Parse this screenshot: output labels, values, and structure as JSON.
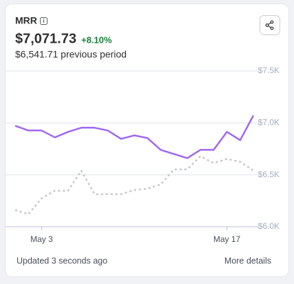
{
  "header": {
    "title": "MRR",
    "value": "$7,071.73",
    "change": "+8.10%",
    "previous": "$6,541.71 previous period"
  },
  "chart_data": {
    "type": "line",
    "categories": [
      null,
      null,
      "May 3",
      null,
      null,
      null,
      null,
      null,
      null,
      null,
      null,
      null,
      null,
      null,
      null,
      null,
      "May 17",
      null,
      null
    ],
    "series": [
      {
        "color": "#9f67f2",
        "line_style": "solid",
        "values": [
          6973,
          6927,
          6927,
          6861,
          6914,
          6954,
          6954,
          6927,
          6847,
          6880,
          6854,
          6741,
          6701,
          6661,
          6741,
          6741,
          6914,
          6834,
          7072
        ]
      },
      {
        "color": "#c3c6ce",
        "line_style": "dotted",
        "values": [
          6161,
          6121,
          6274,
          6347,
          6347,
          6540,
          6314,
          6314,
          6314,
          6354,
          6367,
          6407,
          6553,
          6553,
          6679,
          6613,
          6653,
          6626,
          6542
        ]
      }
    ],
    "ylim": [
      6000,
      7500
    ],
    "yticks": [
      {
        "value": 6000,
        "label": "$6.0K"
      },
      {
        "value": 6500,
        "label": "$6.5K"
      },
      {
        "value": 7000,
        "label": "$7.0K"
      },
      {
        "value": 7500,
        "label": "$7.5K"
      }
    ],
    "grid": true
  },
  "footer": {
    "updated": "Updated 3 seconds ago",
    "link": "More details"
  }
}
